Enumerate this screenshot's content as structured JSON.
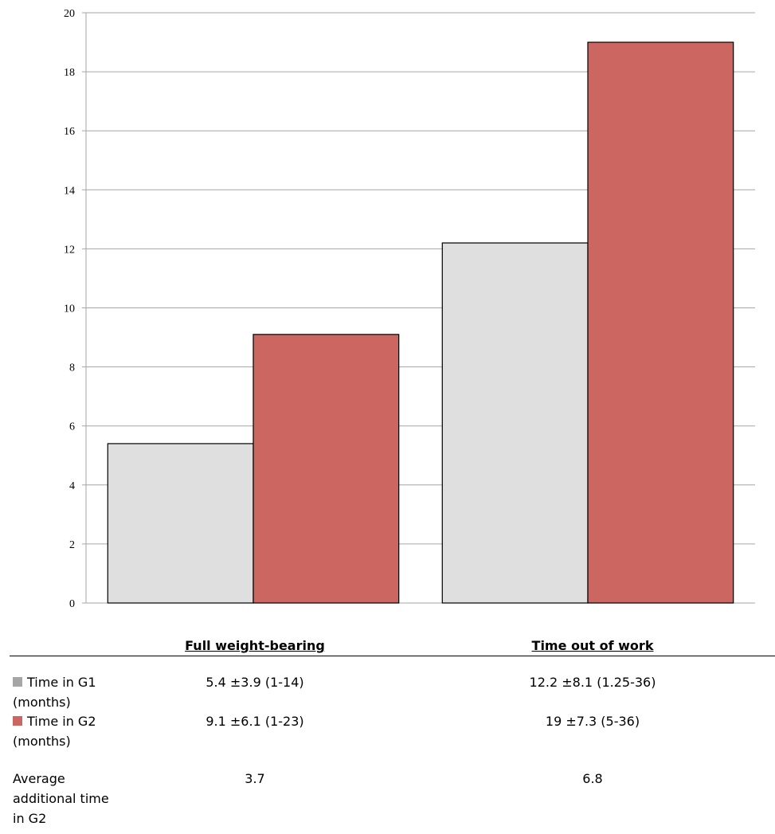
{
  "chart_data": {
    "type": "bar",
    "categories": [
      "Full weight-bearing",
      "Time out of work"
    ],
    "series": [
      {
        "name": "Time in G1 (months)",
        "values": [
          5.4,
          12.2
        ],
        "color": "#dfdfdf"
      },
      {
        "name": "Time in G2 (months)",
        "values": [
          9.1,
          19
        ],
        "color": "#cc6660"
      }
    ],
    "ylim": [
      0,
      20
    ],
    "yticks": [
      0,
      2,
      4,
      6,
      8,
      10,
      12,
      14,
      16,
      18,
      20
    ],
    "grid": true,
    "legend": "in data table below chart"
  },
  "table": {
    "headers": [
      "Full weight-bearing",
      "Time out of work"
    ],
    "rows": [
      {
        "label": "Time in G1 (months)",
        "swatch_color": "#a6a6a6",
        "cells": [
          "5.4 ±3.9 (1-14)",
          "12.2 ±8.1 (1.25-36)"
        ]
      },
      {
        "label": "Time in G2 (months)",
        "swatch_color": "#cc6660",
        "cells": [
          "9.1 ±6.1 (1-23)",
          "19 ±7.3 (5-36)"
        ]
      },
      {
        "label": "Average additional time in G2",
        "cells": [
          "3.7",
          "6.8"
        ]
      }
    ]
  }
}
